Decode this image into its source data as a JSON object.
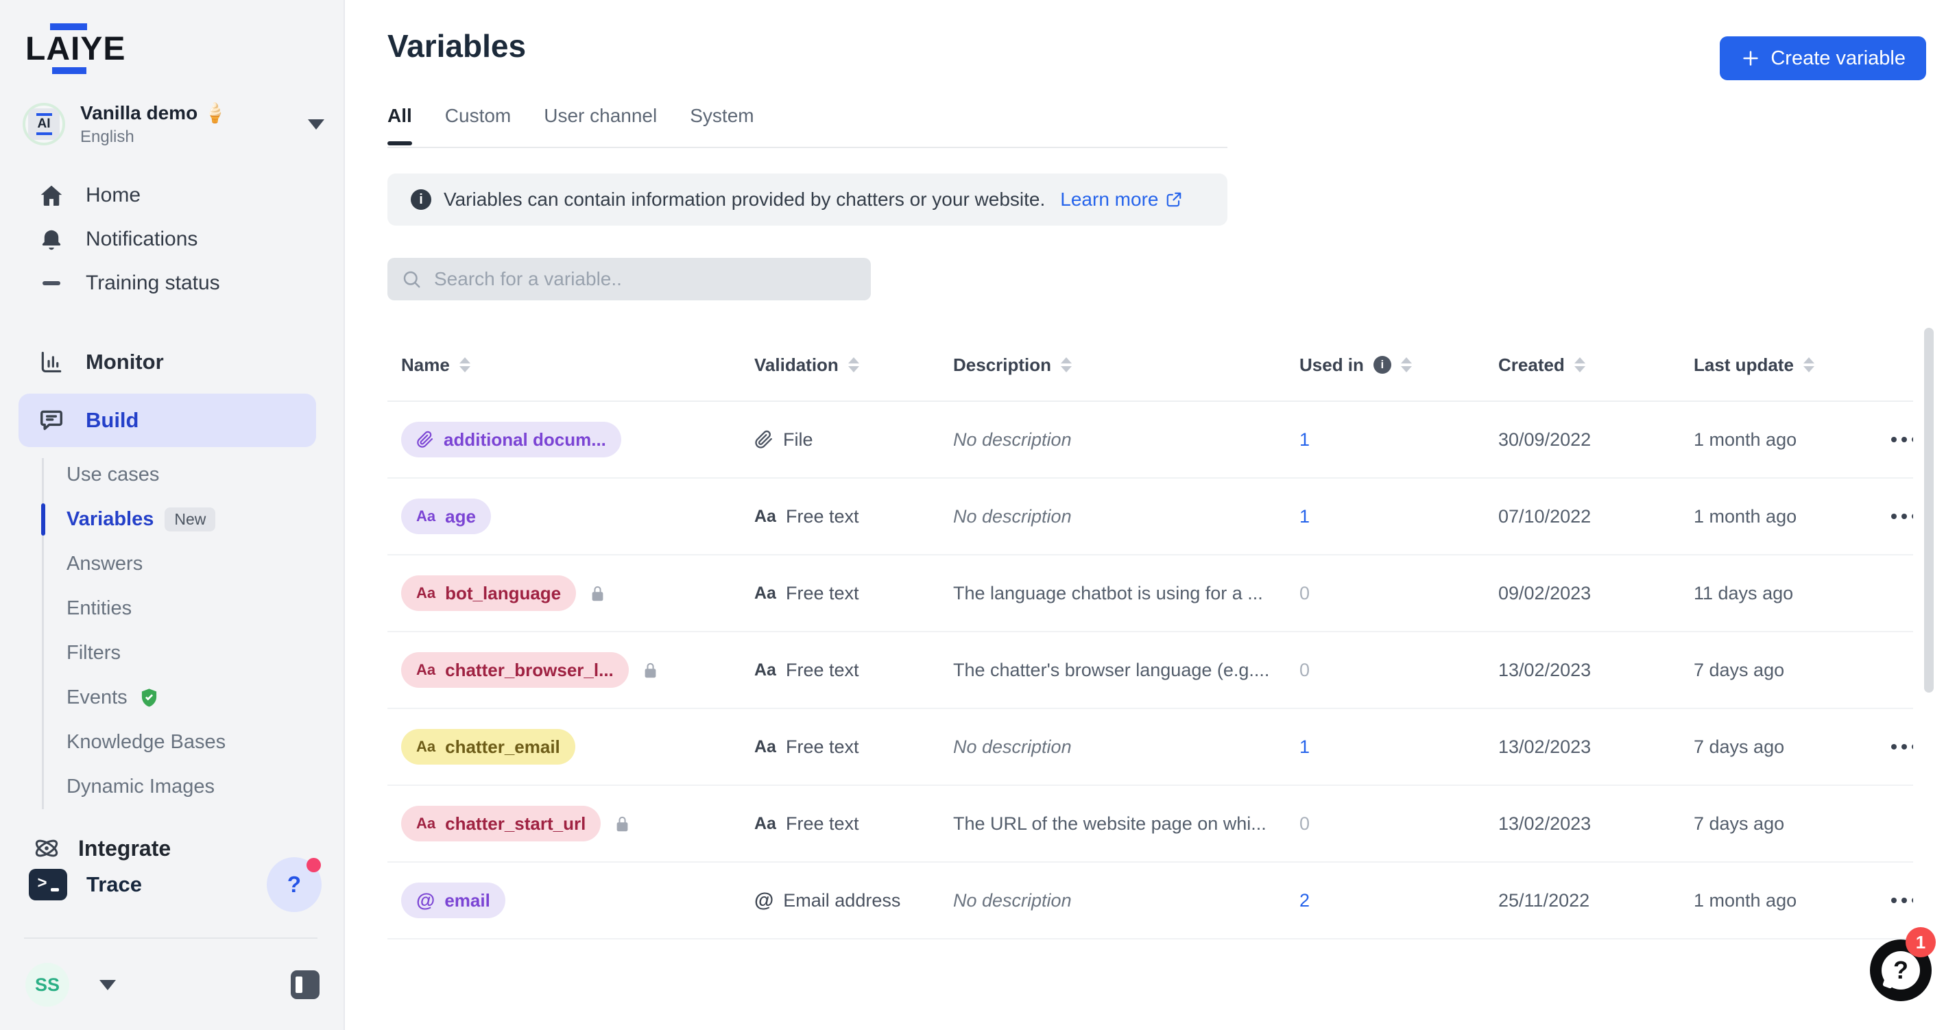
{
  "sidebar": {
    "logo": "LAIYE",
    "workspace": {
      "name": "Vanilla demo 🍦",
      "language": "English",
      "avatar_text": "AI"
    },
    "nav_top": [
      {
        "label": "Home",
        "icon": "home"
      },
      {
        "label": "Notifications",
        "icon": "bell"
      },
      {
        "label": "Training status",
        "icon": "minus"
      }
    ],
    "monitor_label": "Monitor",
    "build_label": "Build",
    "build_children": [
      {
        "label": "Use cases"
      },
      {
        "label": "Variables",
        "badge": "New",
        "active": true
      },
      {
        "label": "Answers"
      },
      {
        "label": "Entities"
      },
      {
        "label": "Filters"
      },
      {
        "label": "Events",
        "icon": "shield-check"
      },
      {
        "label": "Knowledge Bases"
      },
      {
        "label": "Dynamic Images"
      }
    ],
    "integrate_label": "Integrate",
    "trace_label": "Trace",
    "help_label": "?",
    "user_initials": "SS"
  },
  "header": {
    "title": "Variables",
    "create_button": "Create variable",
    "tabs": [
      {
        "label": "All",
        "active": true
      },
      {
        "label": "Custom",
        "active": false
      },
      {
        "label": "User channel",
        "active": false
      },
      {
        "label": "System",
        "active": false
      }
    ]
  },
  "banner": {
    "text": "Variables can contain information provided by chatters or your website.",
    "link_label": "Learn more"
  },
  "search": {
    "placeholder": "Search for a variable.."
  },
  "table": {
    "columns": [
      {
        "label": "Name",
        "sortable": true,
        "info": false
      },
      {
        "label": "Validation",
        "sortable": true,
        "info": false
      },
      {
        "label": "Description",
        "sortable": true,
        "info": false
      },
      {
        "label": "Used in",
        "sortable": true,
        "info": true
      },
      {
        "label": "Created",
        "sortable": true,
        "info": false
      },
      {
        "label": "Last update",
        "sortable": true,
        "info": false
      }
    ],
    "rows": [
      {
        "name": "additional docum...",
        "icon": "paperclip",
        "color": "purple",
        "locked": false,
        "validation": "File",
        "validation_icon": "paperclip",
        "description": "No description",
        "empty_description": true,
        "used_in": "1",
        "used_in_link": true,
        "created": "30/09/2022",
        "last_update": "1 month ago",
        "has_actions": true
      },
      {
        "name": "age",
        "icon": "Aa",
        "color": "purple",
        "locked": false,
        "validation": "Free text",
        "validation_icon": "Aa",
        "description": "No description",
        "empty_description": true,
        "used_in": "1",
        "used_in_link": true,
        "created": "07/10/2022",
        "last_update": "1 month ago",
        "has_actions": true
      },
      {
        "name": "bot_language",
        "icon": "Aa",
        "color": "pink",
        "locked": true,
        "validation": "Free text",
        "validation_icon": "Aa",
        "description": "The language chatbot is using for a ...",
        "empty_description": false,
        "used_in": "0",
        "used_in_link": false,
        "created": "09/02/2023",
        "last_update": "11 days ago",
        "has_actions": false
      },
      {
        "name": "chatter_browser_l...",
        "icon": "Aa",
        "color": "pink",
        "locked": true,
        "validation": "Free text",
        "validation_icon": "Aa",
        "description": "The chatter's browser language (e.g....",
        "empty_description": false,
        "used_in": "0",
        "used_in_link": false,
        "created": "13/02/2023",
        "last_update": "7 days ago",
        "has_actions": false
      },
      {
        "name": "chatter_email",
        "icon": "Aa",
        "color": "yellow",
        "locked": false,
        "validation": "Free text",
        "validation_icon": "Aa",
        "description": "No description",
        "empty_description": true,
        "used_in": "1",
        "used_in_link": true,
        "created": "13/02/2023",
        "last_update": "7 days ago",
        "has_actions": true
      },
      {
        "name": "chatter_start_url",
        "icon": "Aa",
        "color": "pink",
        "locked": true,
        "validation": "Free text",
        "validation_icon": "Aa",
        "description": "The URL of the website page on whi...",
        "empty_description": false,
        "used_in": "0",
        "used_in_link": false,
        "created": "13/02/2023",
        "last_update": "7 days ago",
        "has_actions": false
      },
      {
        "name": "email",
        "icon": "@",
        "color": "purple",
        "locked": false,
        "validation": "Email address",
        "validation_icon": "@",
        "description": "No description",
        "empty_description": true,
        "used_in": "2",
        "used_in_link": true,
        "created": "25/11/2022",
        "last_update": "1 month ago",
        "has_actions": true
      }
    ]
  },
  "help_widget": {
    "badge": "1",
    "question": "?"
  },
  "colors": {
    "accent_blue": "#2563eb",
    "sidebar_bg": "#f3f4f6",
    "active_nav_bg": "#dfe2fb",
    "active_nav_text": "#2440c9",
    "badge_purple_bg": "#e9e4f9",
    "badge_purple_text": "#7b44d4",
    "badge_pink_bg": "#fadbe0",
    "badge_pink_text": "#9f2242",
    "badge_yellow_bg": "#f8efab",
    "badge_yellow_text": "#6d5c17",
    "help_dot_red": "#f4426e",
    "help_badge_red": "#f64c4c"
  }
}
